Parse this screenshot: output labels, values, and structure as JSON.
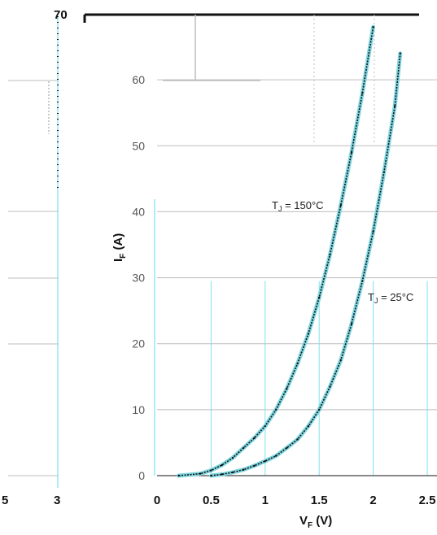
{
  "chart_data": {
    "type": "line",
    "title": "",
    "xlabel": "V",
    "xlabel_sub": "F",
    "xlabel_unit": " (V)",
    "ylabel": "I",
    "ylabel_sub": "F",
    "ylabel_unit": " (A)",
    "xlim": [
      0,
      2.5
    ],
    "ylim": [
      0,
      70
    ],
    "x_ticks": [
      "0",
      "0.5",
      "1",
      "1.5",
      "2",
      "2.5"
    ],
    "y_ticks": [
      "0",
      "10",
      "20",
      "30",
      "40",
      "50",
      "60"
    ],
    "y_top_label": "70",
    "overlay_ticks": [
      "5",
      "3"
    ],
    "grid": true,
    "series": [
      {
        "name": "T_J = 150°C",
        "annotation": "TJ = 150°C",
        "x": [
          0.2,
          0.4,
          0.5,
          0.6,
          0.7,
          0.8,
          0.9,
          1.0,
          1.1,
          1.2,
          1.3,
          1.4,
          1.5,
          1.6,
          1.7,
          1.8,
          1.9,
          2.0
        ],
        "y": [
          0,
          0.3,
          0.8,
          1.6,
          2.7,
          4.2,
          5.7,
          7.5,
          10.0,
          13.2,
          17.0,
          21.5,
          27.0,
          33.5,
          41.0,
          49.0,
          58.0,
          68.0
        ]
      },
      {
        "name": "T_J = 25°C",
        "annotation": "TJ = 25°C",
        "x": [
          0.5,
          0.6,
          0.7,
          0.8,
          0.9,
          1.0,
          1.1,
          1.2,
          1.3,
          1.4,
          1.5,
          1.6,
          1.7,
          1.8,
          1.9,
          2.0,
          2.1,
          2.2,
          2.25
        ],
        "y": [
          0,
          0.2,
          0.5,
          0.9,
          1.5,
          2.2,
          3.0,
          4.2,
          5.5,
          7.5,
          10.0,
          13.5,
          17.5,
          23.0,
          29.5,
          37.0,
          46.0,
          56.0,
          64.0
        ]
      }
    ]
  },
  "colors": {
    "curve": "#111111",
    "curve_shadow": "#7fd6e0",
    "grid": "#bdbdbd",
    "cyan_grid": "#7fe0ec",
    "frame": "#111111"
  }
}
